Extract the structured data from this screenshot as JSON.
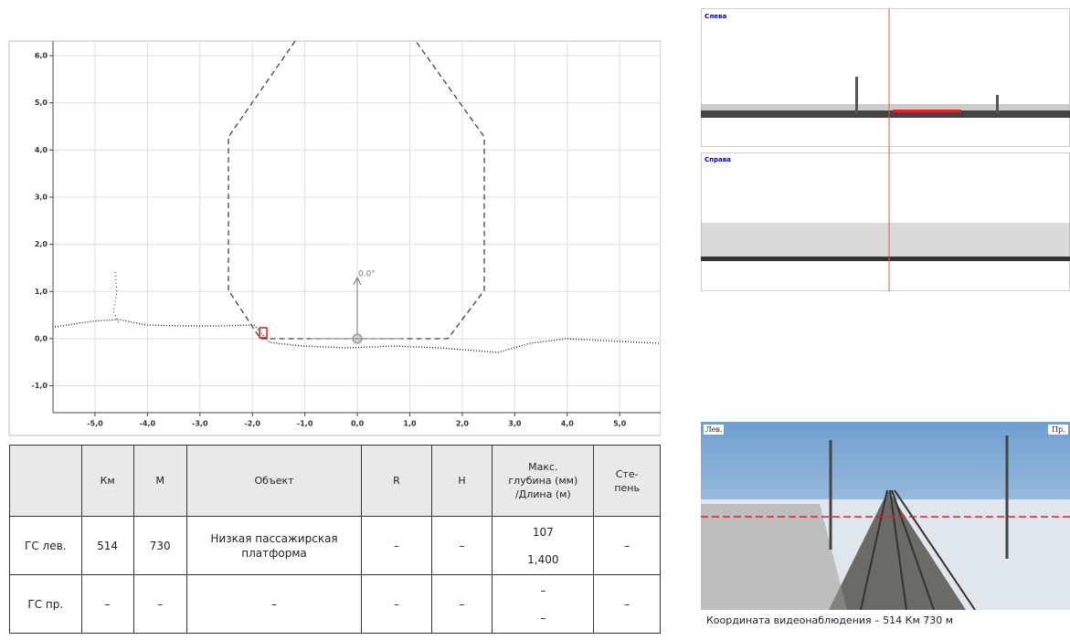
{
  "profile_chart": {
    "xlim": [
      -5.8,
      5.78
    ],
    "ylim": [
      -1.57,
      6.31
    ],
    "xticks": [
      {
        "value": -5,
        "label": "-5,0"
      },
      {
        "value": -4,
        "label": "-4,0"
      },
      {
        "value": -3,
        "label": "-3,0"
      },
      {
        "value": -2,
        "label": "-2,0"
      },
      {
        "value": -1,
        "label": "-1,0"
      },
      {
        "value": 0,
        "label": "0,0"
      },
      {
        "value": 1,
        "label": "1,0"
      },
      {
        "value": 2,
        "label": "2,0"
      },
      {
        "value": 3,
        "label": "3,0"
      },
      {
        "value": 4,
        "label": "4,0"
      },
      {
        "value": 5,
        "label": "5,0"
      }
    ],
    "yticks": [
      {
        "value": -1,
        "label": "-1,0"
      },
      {
        "value": 0,
        "label": "0,0"
      },
      {
        "value": 1,
        "label": "1,0"
      },
      {
        "value": 2,
        "label": "2,0"
      },
      {
        "value": 3,
        "label": "3,0"
      },
      {
        "value": 4,
        "label": "4,0"
      },
      {
        "value": 5,
        "label": "5,0"
      },
      {
        "value": 6,
        "label": "6,0"
      }
    ],
    "angle_label": "0.0°"
  },
  "table": {
    "header": [
      "",
      "Км",
      "М",
      "Объект",
      "R",
      "H",
      [
        "Макс.",
        "глубина (мм)",
        "/Длина (м)"
      ],
      [
        "Сте-",
        "пень"
      ]
    ],
    "rows": [
      [
        "ГС лев.",
        "514",
        "730",
        "Низкая пассажирская платформа",
        "–",
        "–",
        [
          "107",
          "1,400"
        ],
        "–"
      ],
      [
        "ГС пр.",
        "–",
        "–",
        "–",
        "–",
        "–",
        [
          "–",
          "–"
        ],
        "–"
      ]
    ]
  },
  "scans": {
    "left_label": "Слева",
    "right_label": "Справа"
  },
  "camera": {
    "left_label": "Лев.",
    "right_label": "Пр.",
    "caption": "Координата видеонаблюдения – 514 Км 730 м"
  }
}
